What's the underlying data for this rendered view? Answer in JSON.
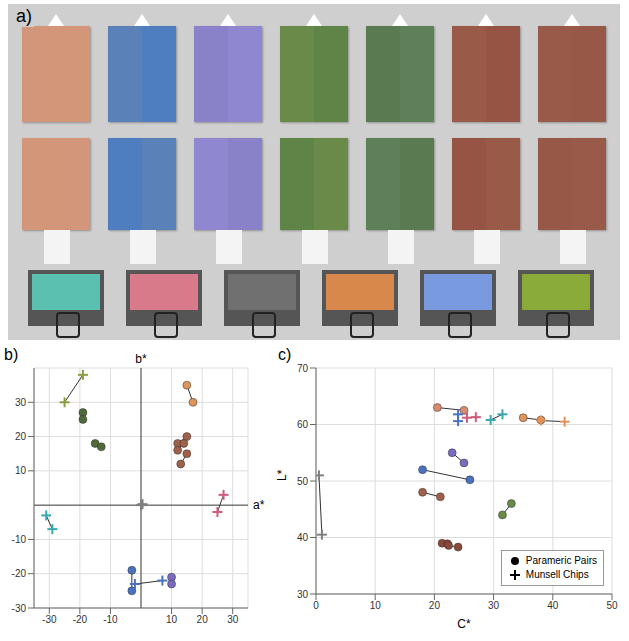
{
  "chart_data": [
    {
      "type": "photo",
      "title": "a)"
    },
    {
      "type": "scatter",
      "title": "b)",
      "xlabel": "a*",
      "ylabel": "b*",
      "xlim": [
        -35,
        35
      ],
      "ylim": [
        -30,
        40
      ],
      "xticks": [
        -30,
        -20,
        -10,
        10,
        20,
        30
      ],
      "yticks": [
        -30,
        -20,
        -10,
        10,
        20,
        30
      ],
      "grid": true,
      "series": [
        {
          "marker": "circle",
          "line_style": "solid",
          "x": [
            -19,
            -19,
            -15,
            -13,
            15,
            17,
            12,
            15,
            12,
            14,
            13,
            15,
            -3,
            -3,
            10,
            10
          ],
          "values": [
            27,
            25,
            18,
            17,
            35,
            30,
            18,
            20,
            16,
            18,
            12,
            15,
            -19,
            -25,
            -21,
            -23
          ],
          "colors": [
            "#4f6b3a",
            "#4f6b3a",
            "#4f6b3a",
            "#4f6b3a",
            "#e0945a",
            "#e0945a",
            "#a0604a",
            "#a0604a",
            "#a0604a",
            "#a0604a",
            "#a0604a",
            "#a0604a",
            "#4a72c0",
            "#4a72c0",
            "#7a6ac0",
            "#7a6ac0"
          ]
        },
        {
          "marker": "cross",
          "line_style": "solid",
          "x": [
            -25,
            -19,
            27,
            25,
            -31,
            -29,
            0,
            0.5,
            -2,
            7
          ],
          "values": [
            30,
            38,
            3,
            -2,
            -3,
            -7,
            0,
            0.3,
            -23,
            -22
          ],
          "colors": [
            "#8aa040",
            "#8aa040",
            "#d45a7a",
            "#d45a7a",
            "#3aa8b0",
            "#3aa8b0",
            "#808080",
            "#808080",
            "#4a72c0",
            "#4a72c0"
          ]
        }
      ]
    },
    {
      "type": "scatter",
      "title": "c)",
      "xlabel": "C*",
      "ylabel": "L*",
      "xlim": [
        0,
        50
      ],
      "ylim": [
        30,
        70
      ],
      "xticks": [
        0,
        10,
        20,
        30,
        40,
        50
      ],
      "yticks": [
        30,
        40,
        50,
        60,
        70
      ],
      "grid": true,
      "legend": "lower right",
      "series": [
        {
          "name": "Parameric Pairs",
          "marker": "circle",
          "line_style": "solid",
          "color": "#000000",
          "x": [
            20.5,
            25,
            35,
            38,
            23,
            25,
            18,
            26,
            18,
            21,
            31.5,
            33,
            21.3,
            22.2,
            22.4,
            24
          ],
          "values": [
            63,
            62.5,
            61.2,
            60.8,
            55,
            53.2,
            52,
            50.2,
            48,
            47.2,
            44,
            46,
            39,
            38.9,
            38.6,
            38.3
          ],
          "colors": [
            "#d88a70",
            "#d88a70",
            "#e0945a",
            "#e0945a",
            "#7a6ac0",
            "#7a6ac0",
            "#4a72c0",
            "#4a72c0",
            "#a0604a",
            "#a0604a",
            "#6a8a4a",
            "#6a8a4a",
            "#8a4a3a",
            "#8a4a3a",
            "#8a4a3a",
            "#8a4a3a"
          ]
        },
        {
          "name": "Munsell Chips",
          "marker": "cross",
          "line_style": "solid",
          "color": "#000000",
          "x": [
            0.5,
            1,
            24,
            24,
            25.5,
            27,
            29.5,
            31.5,
            38,
            42
          ],
          "values": [
            51,
            40.5,
            61.8,
            60.6,
            61.2,
            61.3,
            60.8,
            61.8,
            60.7,
            60.5
          ],
          "colors": [
            "#808080",
            "#808080",
            "#4a72c0",
            "#4a72c0",
            "#d45a7a",
            "#d45a7a",
            "#3aa8b0",
            "#3aa8b0",
            "#e0945a",
            "#e0945a"
          ]
        }
      ]
    }
  ]
}
